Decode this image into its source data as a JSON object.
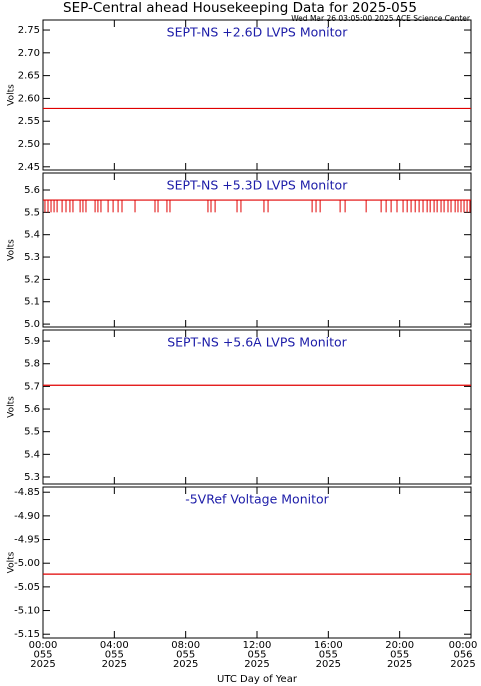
{
  "title": "SEP-Central ahead Housekeeping Data for 2025-055",
  "subtitle": "Wed Mar 26 03:05:00 2025 ACE Science Center",
  "xlabel": "UTC Day of Year",
  "xlim": [
    0,
    24
  ],
  "xticks": [
    {
      "value": 0,
      "label": [
        "00:00",
        "055",
        "2025"
      ]
    },
    {
      "value": 4,
      "label": [
        "04:00",
        "055",
        "2025"
      ]
    },
    {
      "value": 8,
      "label": [
        "08:00",
        "055",
        "2025"
      ]
    },
    {
      "value": 12,
      "label": [
        "12:00",
        "055",
        "2025"
      ]
    },
    {
      "value": 16,
      "label": [
        "16:00",
        "055",
        "2025"
      ]
    },
    {
      "value": 20,
      "label": [
        "20:00",
        "055",
        "2025"
      ]
    },
    {
      "value": 24,
      "label": [
        "00:00",
        "056",
        "2025"
      ]
    }
  ],
  "chart_data": [
    {
      "type": "line",
      "title": "SEPT-NS +2.6D LVPS Monitor",
      "ylabel": "Volts",
      "color": "#e00000",
      "title_color": "#1c1ca8",
      "ylim": [
        2.443,
        2.772
      ],
      "yticks": [
        2.45,
        {
          "value": 2.5,
          "label": "2.50"
        },
        2.55,
        {
          "value": 2.6,
          "label": "2.60"
        },
        2.65,
        {
          "value": 2.7,
          "label": "2.70"
        },
        2.75
      ],
      "x": [
        0,
        24
      ],
      "values": [
        2.578,
        2.578
      ]
    },
    {
      "type": "line",
      "title": "SEPT-NS +5.3D LVPS Monitor",
      "ylabel": "Volts",
      "color": "#e00000",
      "title_color": "#1c1ca8",
      "ylim": [
        4.987,
        5.676
      ],
      "yticks": [
        {
          "value": 5,
          "label": "5.0"
        },
        5.1,
        5.2,
        5.3,
        5.4,
        5.5,
        5.6
      ],
      "x": [
        0,
        24
      ],
      "values": [
        5.555,
        5.555
      ],
      "dips": {
        "x": [
          0.11,
          0.28,
          0.45,
          0.62,
          0.79,
          1.07,
          1.29,
          1.51,
          1.68,
          2.08,
          2.24,
          2.41,
          2.92,
          3.08,
          3.25,
          3.65,
          3.93,
          4.21,
          4.43,
          5.16,
          6.28,
          6.45,
          6.95,
          7.12,
          9.25,
          9.42,
          9.65,
          10.88,
          11.1,
          12.39,
          12.62,
          15.09,
          15.31,
          15.54,
          16.66,
          16.94,
          18.12,
          18.96,
          19.24,
          19.52,
          19.85,
          20.19,
          20.42,
          20.64,
          20.87,
          21.09,
          21.31,
          21.54,
          21.71,
          21.93,
          22.1,
          22.32,
          22.49,
          22.71,
          22.88,
          23.11,
          23.27,
          23.44,
          23.61,
          23.78,
          23.94
        ],
        "values": [
          5.5,
          5.5,
          5.5,
          5.5,
          5.5,
          5.5,
          5.5,
          5.5,
          5.5,
          5.5,
          5.5,
          5.5,
          5.5,
          5.5,
          5.5,
          5.5,
          5.5,
          5.5,
          5.5,
          5.5,
          5.5,
          5.5,
          5.5,
          5.5,
          5.5,
          5.5,
          5.5,
          5.5,
          5.5,
          5.5,
          5.5,
          5.5,
          5.5,
          5.5,
          5.5,
          5.5,
          5.5,
          5.5,
          5.5,
          5.5,
          5.5,
          5.5,
          5.5,
          5.5,
          5.5,
          5.5,
          5.5,
          5.5,
          5.5,
          5.5,
          5.5,
          5.5,
          5.5,
          5.5,
          5.5,
          5.5,
          5.5,
          5.5,
          5.5,
          5.5,
          5.5
        ]
      }
    },
    {
      "type": "line",
      "title": "SEPT-NS +5.6A LVPS Monitor",
      "ylabel": "Volts",
      "color": "#e00000",
      "title_color": "#1c1ca8",
      "ylim": [
        5.269,
        5.949
      ],
      "yticks": [
        5.3,
        5.4,
        5.5,
        5.6,
        5.7,
        5.8,
        5.9
      ],
      "x": [
        0,
        24
      ],
      "values": [
        5.705,
        5.705
      ]
    },
    {
      "type": "line",
      "title": "-5VRef Voltage Monitor",
      "ylabel": "Volts",
      "color": "#e00000",
      "title_color": "#1c1ca8",
      "ylim": [
        -5.158,
        -4.839
      ],
      "yticks": [
        {
          "value": -5.15,
          "label": "-5.15"
        },
        {
          "value": -5.1,
          "label": "-5.10"
        },
        -5.05,
        {
          "value": -5,
          "label": "-5.00"
        },
        -4.95,
        {
          "value": -4.9,
          "label": "-4.90"
        },
        -4.85
      ],
      "x": [
        0,
        24
      ],
      "values": [
        -5.023,
        -5.023
      ]
    }
  ]
}
